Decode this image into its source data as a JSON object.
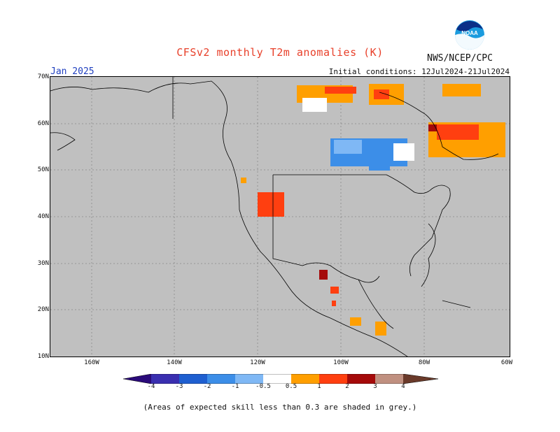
{
  "title": "CFSv2 monthly T2m anomalies (K)",
  "agency": "NWS/NCEP/CPC",
  "logo_text": "NOAA",
  "month": "Jan 2025",
  "initial_conditions": "Initial conditions: 12Jul2024-21Jul2024",
  "lat_labels": [
    "70N",
    "60N",
    "50N",
    "40N",
    "30N",
    "20N",
    "10N"
  ],
  "lon_labels": [
    "160W",
    "140W",
    "120W",
    "100W",
    "80W",
    "60W"
  ],
  "colorbar": {
    "ticks": [
      "-4",
      "-3",
      "-2",
      "-1",
      "-0.5",
      "0.5",
      "1",
      "2",
      "3",
      "4"
    ],
    "colors": {
      "lt_-4": "#2a0a7a",
      "-4_-3": "#3a2fb0",
      "-3_-2": "#1f5fd0",
      "-2_-1": "#3c8ee8",
      "-1_-0.5": "#7fb8f5",
      "-0.5_0.5": "#ffffff",
      "0.5_1": "#ff9f00",
      "1_2": "#ff3f10",
      "2_3": "#a50a0a",
      "3_4": "#c09080",
      "gt_4": "#6a3a2a"
    }
  },
  "footnote": "(Areas of expected skill less than 0.3 are shaded in grey.)"
}
